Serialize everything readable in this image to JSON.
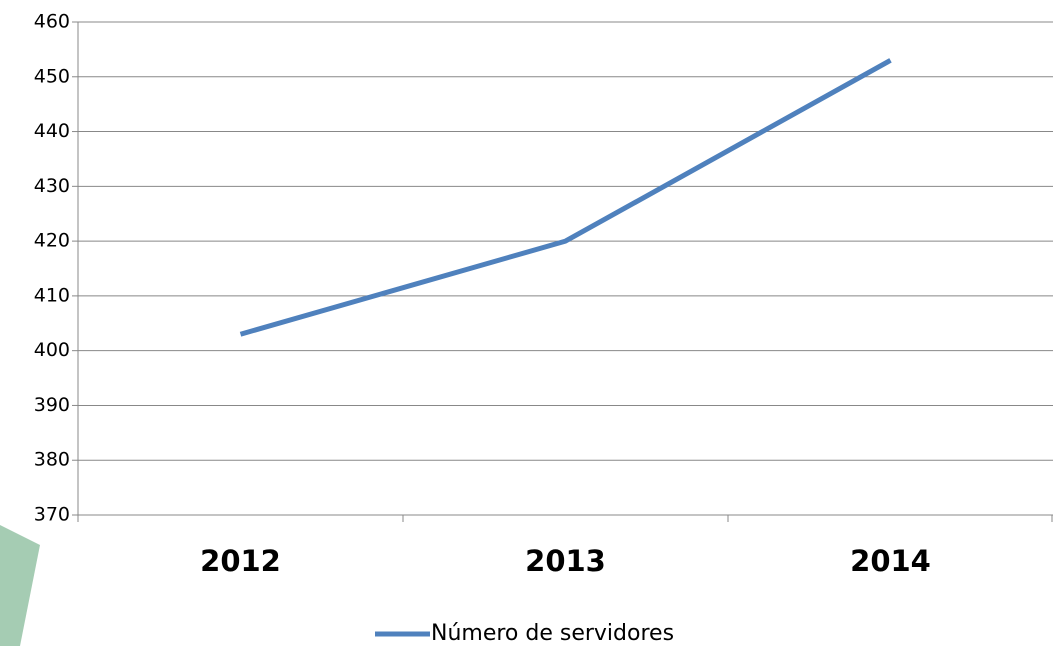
{
  "chart_data": {
    "type": "line",
    "categories": [
      "2012",
      "2013",
      "2014"
    ],
    "series": [
      {
        "name": "Número de servidores",
        "color": "#4f81bd",
        "values": [
          403,
          420,
          453
        ]
      }
    ],
    "ylim": [
      370,
      460
    ],
    "yticks": [
      370,
      380,
      390,
      400,
      410,
      420,
      430,
      440,
      450,
      460
    ],
    "grid": true,
    "legend": "bottom"
  }
}
